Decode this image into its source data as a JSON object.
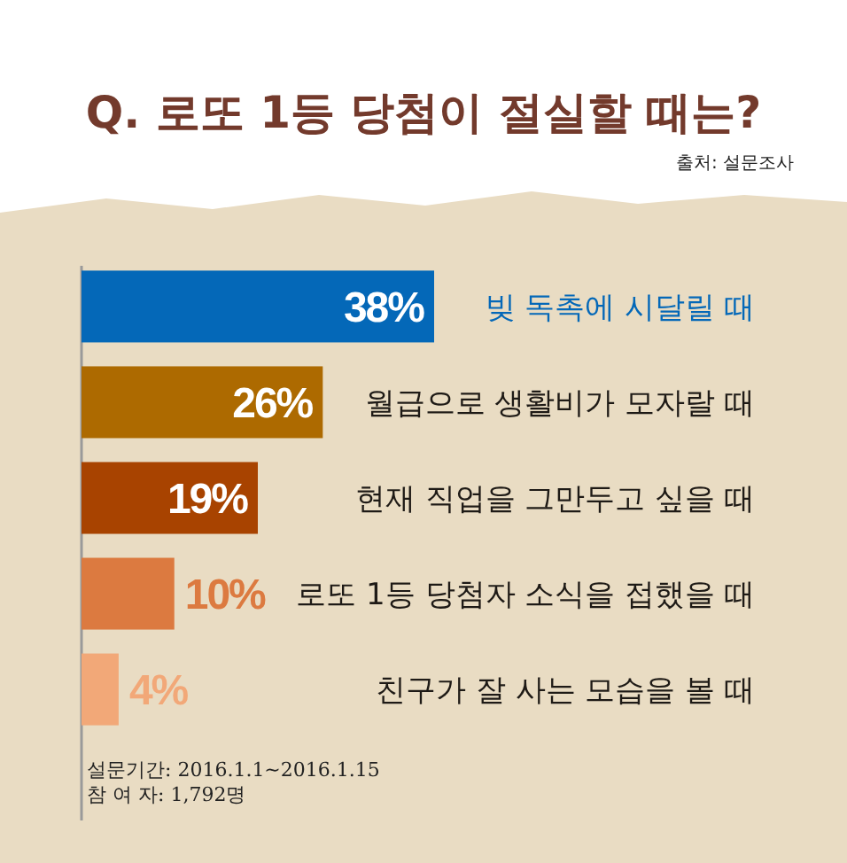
{
  "chart_data": {
    "type": "bar",
    "orientation": "horizontal",
    "title": "Q. 로또 1등 당첨이 절실할 때는?",
    "categories": [
      "빚 독촉에 시달릴 때",
      "월급으로 생활비가 모자랄 때",
      "현재 직업을 그만두고 싶을 때",
      "로또 1등 당첨자 소식을 접했을 때",
      "친구가 잘 사는 모습을 볼 때"
    ],
    "values": [
      38,
      26,
      19,
      10,
      4
    ],
    "colors": [
      "#0468b8",
      "#ad6a00",
      "#a84300",
      "#dc7a40",
      "#f2a878"
    ],
    "value_labels": [
      "38%",
      "26%",
      "19%",
      "10%",
      "4%"
    ],
    "annotations": [
      "출처: 설문조사",
      "설문기간: 2016.1.1~2016.1.15",
      "참 여 자: 1,792명"
    ]
  }
}
